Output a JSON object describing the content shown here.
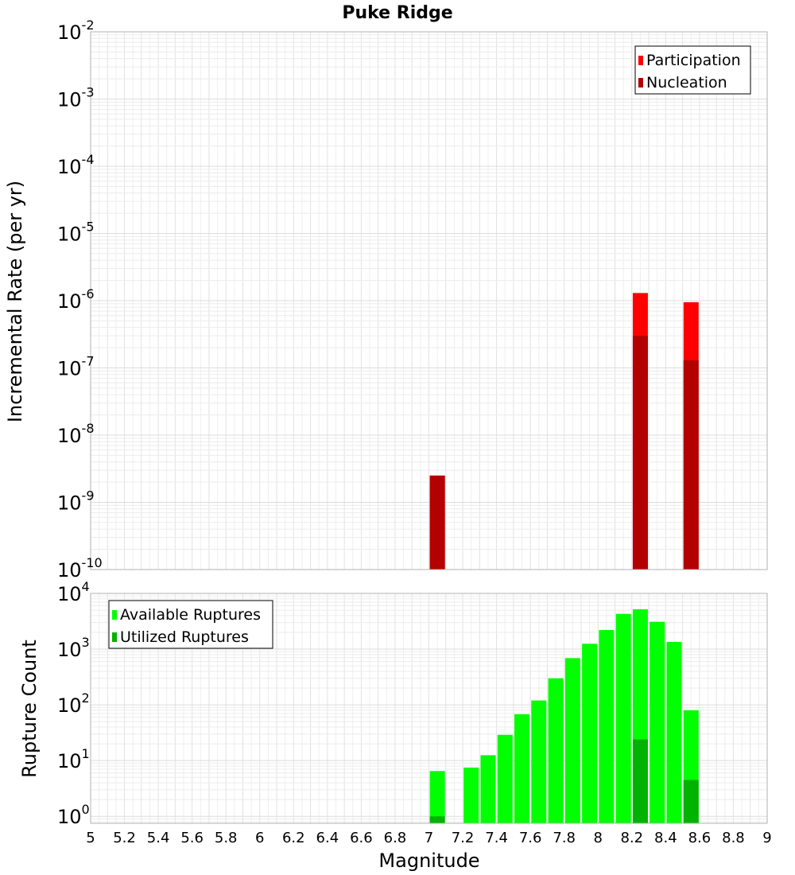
{
  "chart_data": [
    {
      "type": "bar",
      "title": "Puke Ridge",
      "ylabel": "Incremental Rate (per yr)",
      "xlabel": "",
      "x_range": [
        5,
        9
      ],
      "y_scale": "log",
      "y_range": [
        1e-10,
        0.01
      ],
      "y_tick_exponents": [
        "-10",
        "-9",
        "-8",
        "-7",
        "-6",
        "-5",
        "-4",
        "-3",
        "-2"
      ],
      "grid": true,
      "legend_placement": "top-right",
      "series": [
        {
          "name": "Participation",
          "color": "#ff0000",
          "points": [
            {
              "x": 7.05,
              "y": 2.5e-09
            },
            {
              "x": 8.25,
              "y": 1.3e-06
            },
            {
              "x": 8.55,
              "y": 9.5e-07
            }
          ]
        },
        {
          "name": "Nucleation",
          "color": "#b30000",
          "points": [
            {
              "x": 7.05,
              "y": 2.5e-09
            },
            {
              "x": 8.25,
              "y": 3e-07
            },
            {
              "x": 8.55,
              "y": 1.3e-07
            }
          ]
        }
      ]
    },
    {
      "type": "bar",
      "title": "",
      "ylabel": "Rupture Count",
      "xlabel": "Magnitude",
      "x_range": [
        5,
        9
      ],
      "x_ticks": [
        "5",
        "5.2",
        "5.4",
        "5.6",
        "5.8",
        "6",
        "6.2",
        "6.4",
        "6.6",
        "6.8",
        "7",
        "7.2",
        "7.4",
        "7.6",
        "7.8",
        "8",
        "8.2",
        "8.4",
        "8.6",
        "8.8",
        "9"
      ],
      "y_scale": "log",
      "y_range": [
        0.75,
        10000.0
      ],
      "y_tick_exponents": [
        "0",
        "1",
        "2",
        "3",
        "4"
      ],
      "grid": true,
      "legend_placement": "top-left",
      "series": [
        {
          "name": "Available Ruptures",
          "color": "#00ff00",
          "points": [
            {
              "x": 7.05,
              "y": 6.5
            },
            {
              "x": 7.25,
              "y": 7.5
            },
            {
              "x": 7.35,
              "y": 12.5
            },
            {
              "x": 7.45,
              "y": 29
            },
            {
              "x": 7.55,
              "y": 68
            },
            {
              "x": 7.65,
              "y": 120
            },
            {
              "x": 7.75,
              "y": 300
            },
            {
              "x": 7.85,
              "y": 690
            },
            {
              "x": 7.95,
              "y": 1250
            },
            {
              "x": 8.05,
              "y": 2200
            },
            {
              "x": 8.15,
              "y": 4300
            },
            {
              "x": 8.25,
              "y": 5200
            },
            {
              "x": 8.35,
              "y": 3100
            },
            {
              "x": 8.45,
              "y": 1350
            },
            {
              "x": 8.55,
              "y": 80
            }
          ]
        },
        {
          "name": "Utilized Ruptures",
          "color": "#00b300",
          "points": [
            {
              "x": 7.05,
              "y": 1
            },
            {
              "x": 8.25,
              "y": 24
            },
            {
              "x": 8.55,
              "y": 4.5
            }
          ]
        }
      ]
    }
  ]
}
